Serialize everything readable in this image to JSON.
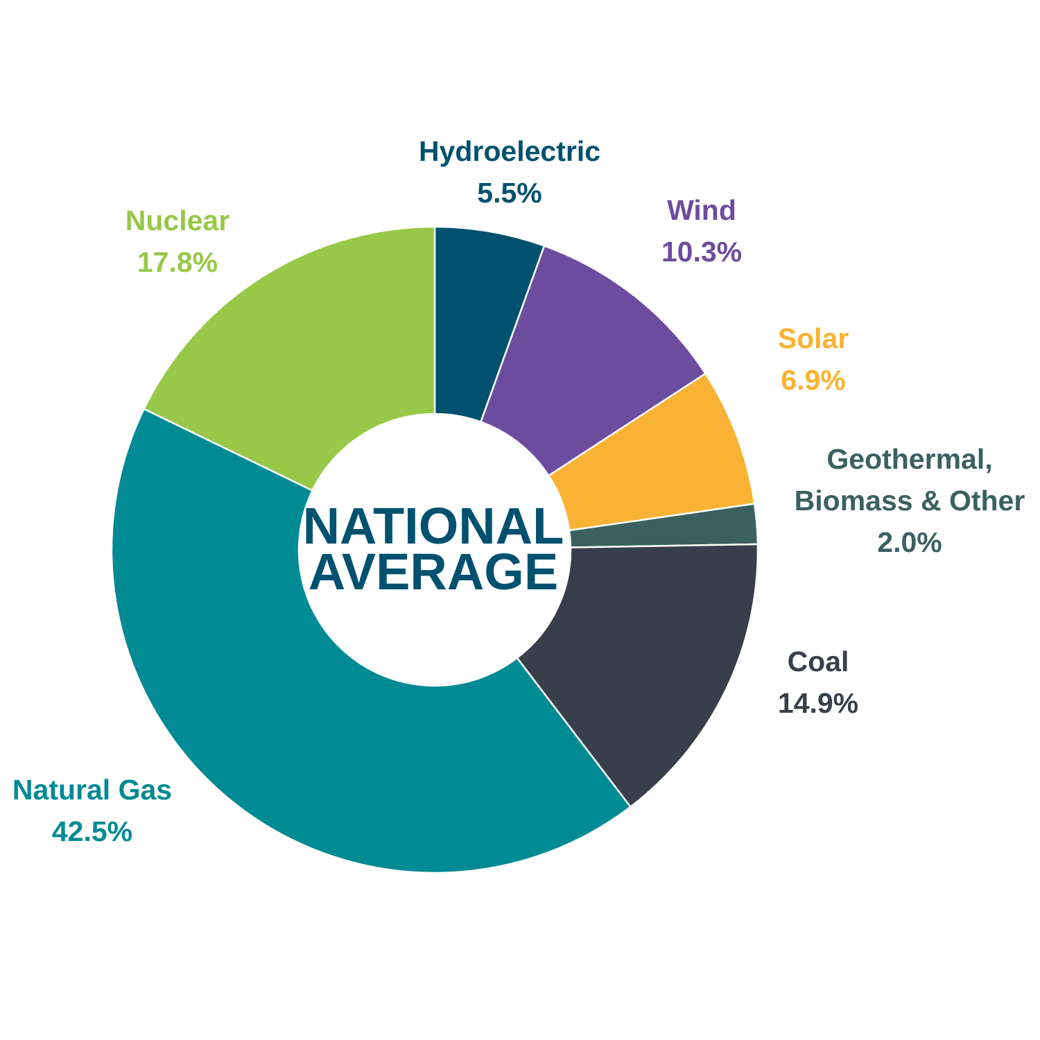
{
  "chart_data": {
    "type": "pie",
    "donut": true,
    "center_label": [
      "NATIONAL",
      "AVERAGE"
    ],
    "categories": [
      "Hydroelectric",
      "Wind",
      "Solar",
      "Geothermal, Biomass & Other",
      "Coal",
      "Natural Gas",
      "Nuclear"
    ],
    "values": [
      5.5,
      10.3,
      6.9,
      2.0,
      14.9,
      42.5,
      17.8
    ],
    "value_labels": [
      "5.5%",
      "10.3%",
      "6.9%",
      "2.0%",
      "14.9%",
      "42.5%",
      "17.8%"
    ],
    "colors": [
      "#00516f",
      "#6c4c9f",
      "#f9b233",
      "#3a615f",
      "#383f4b",
      "#008a93",
      "#97c847"
    ],
    "center_color": "#00516f",
    "start_angle": "12 o'clock, clockwise"
  }
}
